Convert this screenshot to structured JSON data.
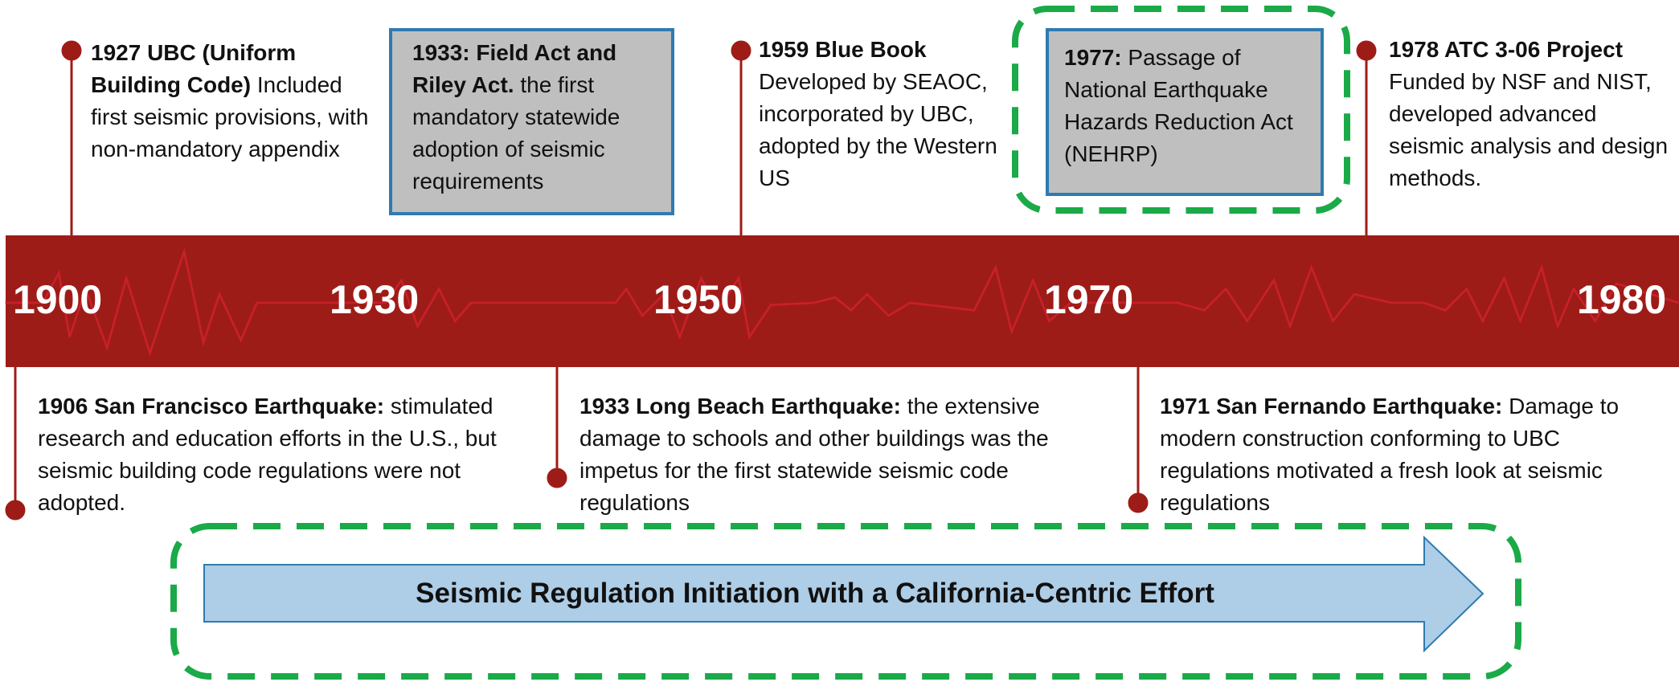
{
  "timeline": {
    "years": [
      "1900",
      "1930",
      "1950",
      "1970",
      "1980"
    ],
    "events_top": [
      {
        "title": "1927 UBC (Uniform Building Code)",
        "body": "Included first seismic provisions, with non-mandatory appendix"
      },
      {
        "title": "1933: Field Act and Riley Act.",
        "body": "the first mandatory statewide adoption of seismic requirements"
      },
      {
        "title": "1959 Blue Book",
        "body": "Developed by SEAOC, incorporated by UBC, adopted by the Western US"
      },
      {
        "title": "1977:",
        "body": "Passage of National Earthquake Hazards Reduction Act (NEHRP)"
      },
      {
        "title": "1978 ATC 3-06 Project",
        "body": "Funded by NSF and NIST, developed advanced seismic analysis and design methods."
      }
    ],
    "events_bottom": [
      {
        "title": "1906 San Francisco Earthquake:",
        "body": "stimulated research and education efforts in the U.S., but seismic building code regulations were not adopted."
      },
      {
        "title": "1933 Long Beach Earthquake:",
        "body": "the extensive damage to schools and other buildings was the impetus for the first statewide seismic code regulations"
      },
      {
        "title": "1971 San Fernando Earthquake:",
        "body": "Damage to modern construction conforming to UBC regulations motivated a fresh look at seismic regulations"
      }
    ],
    "banner": "Seismic Regulation Initiation with a California-Centric Effort"
  }
}
